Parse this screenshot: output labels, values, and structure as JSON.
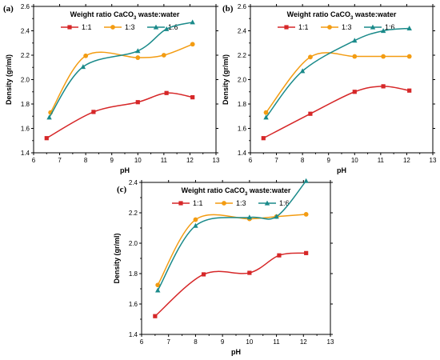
{
  "figure": {
    "legend_title_main": "Weight ratio CaCO",
    "legend_title_sub": "3",
    "legend_title_rest": " waste:water",
    "colors": {
      "1:1": "#d62728",
      "1:3": "#f39c12",
      "1:6": "#1a8a8a"
    }
  },
  "chart_data": [
    {
      "panel": "(a)",
      "type": "line",
      "xlabel": "pH",
      "ylabel": "Density (gr/ml)",
      "xlim": [
        6,
        13
      ],
      "ylim": [
        1.4,
        2.6
      ],
      "xticks": [
        6,
        7,
        8,
        9,
        10,
        11,
        12,
        13
      ],
      "yticks": [
        1.4,
        1.6,
        1.8,
        2.0,
        2.2,
        2.4,
        2.6
      ],
      "series": [
        {
          "name": "1:1",
          "marker": "square",
          "color": "#d62728",
          "x": [
            6.5,
            8.3,
            10.0,
            11.1,
            12.1
          ],
          "y": [
            1.52,
            1.735,
            1.815,
            1.89,
            1.855
          ]
        },
        {
          "name": "1:3",
          "marker": "circle",
          "color": "#f39c12",
          "x": [
            6.65,
            8.0,
            10.0,
            11.0,
            12.1
          ],
          "y": [
            1.73,
            2.195,
            2.18,
            2.2,
            2.29
          ]
        },
        {
          "name": "1:6",
          "marker": "triangle",
          "color": "#1a8a8a",
          "x": [
            6.6,
            7.9,
            10.0,
            11.1,
            12.1
          ],
          "y": [
            1.69,
            2.105,
            2.235,
            2.415,
            2.47
          ]
        }
      ]
    },
    {
      "panel": "(b)",
      "type": "line",
      "xlabel": "pH",
      "ylabel": "Density (gr/ml)",
      "xlim": [
        6,
        13
      ],
      "ylim": [
        1.4,
        2.6
      ],
      "xticks": [
        6,
        7,
        8,
        9,
        10,
        11,
        12,
        13
      ],
      "yticks": [
        1.4,
        1.6,
        1.8,
        2.0,
        2.2,
        2.4,
        2.6
      ],
      "series": [
        {
          "name": "1:1",
          "marker": "square",
          "color": "#d62728",
          "x": [
            6.5,
            8.3,
            10.0,
            11.1,
            12.1
          ],
          "y": [
            1.52,
            1.72,
            1.9,
            1.945,
            1.91
          ]
        },
        {
          "name": "1:3",
          "marker": "circle",
          "color": "#f39c12",
          "x": [
            6.6,
            8.3,
            10.0,
            11.1,
            12.1
          ],
          "y": [
            1.73,
            2.185,
            2.19,
            2.19,
            2.19
          ]
        },
        {
          "name": "1:6",
          "marker": "triangle",
          "color": "#1a8a8a",
          "x": [
            6.6,
            8.0,
            10.0,
            11.1,
            12.1
          ],
          "y": [
            1.69,
            2.07,
            2.32,
            2.4,
            2.42
          ]
        }
      ]
    },
    {
      "panel": "(c)",
      "type": "line",
      "xlabel": "pH",
      "ylabel": "Density (gr/ml)",
      "xlim": [
        6,
        13
      ],
      "ylim": [
        1.4,
        2.4
      ],
      "xticks": [
        6,
        7,
        8,
        9,
        10,
        11,
        12,
        13
      ],
      "yticks": [
        1.4,
        1.6,
        1.8,
        2.0,
        2.2,
        2.4
      ],
      "series": [
        {
          "name": "1:1",
          "marker": "square",
          "color": "#d62728",
          "x": [
            6.5,
            8.3,
            10.0,
            11.1,
            12.1
          ],
          "y": [
            1.52,
            1.795,
            1.805,
            1.92,
            1.935
          ]
        },
        {
          "name": "1:3",
          "marker": "circle",
          "color": "#f39c12",
          "x": [
            6.6,
            8.0,
            10.0,
            11.0,
            12.1
          ],
          "y": [
            1.725,
            2.155,
            2.16,
            2.175,
            2.19
          ]
        },
        {
          "name": "1:6",
          "marker": "triangle",
          "color": "#1a8a8a",
          "x": [
            6.6,
            8.0,
            10.0,
            11.0,
            12.1
          ],
          "y": [
            1.69,
            2.115,
            2.17,
            2.175,
            2.41
          ]
        }
      ]
    }
  ]
}
